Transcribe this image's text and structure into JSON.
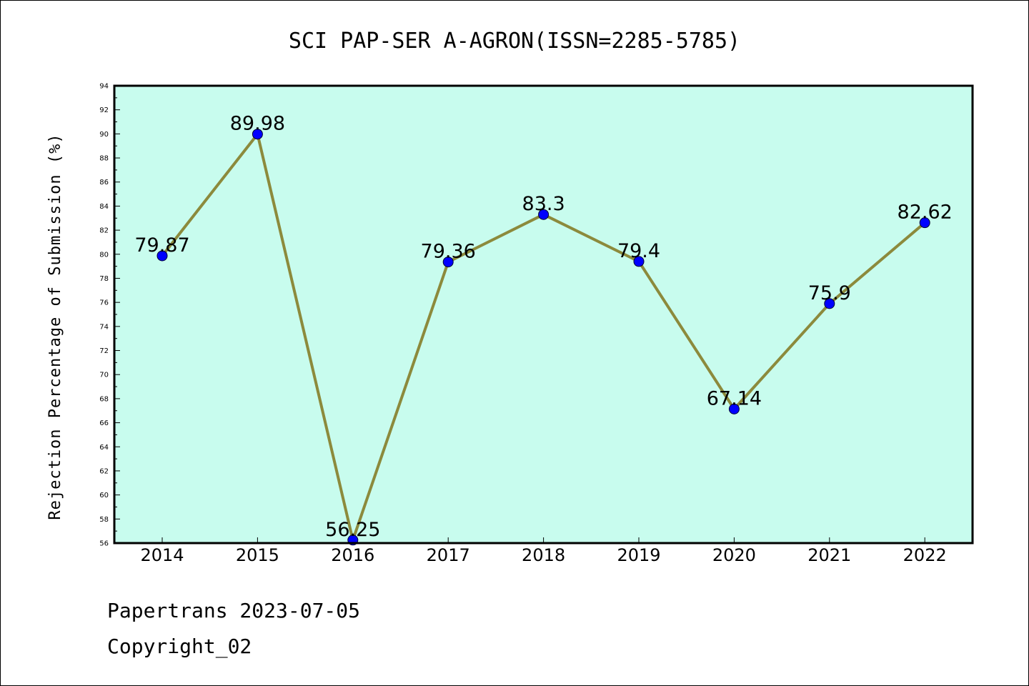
{
  "chart_data": {
    "type": "line",
    "title": "SCI PAP-SER A-AGRON(ISSN=2285-5785)",
    "ylabel": "Rejection Percentage of Submission (%)",
    "xlabel": "",
    "categories": [
      "2014",
      "2015",
      "2016",
      "2017",
      "2018",
      "2019",
      "2020",
      "2021",
      "2022"
    ],
    "series": [
      {
        "values": [
          79.87,
          89.98,
          56.25,
          79.36,
          83.3,
          79.4,
          67.14,
          75.9,
          82.62
        ],
        "labels": [
          "79.87",
          "89.98",
          "56.25",
          "79.36",
          "83.3",
          "79.4",
          "67.14",
          "75.9",
          "82.62"
        ]
      }
    ],
    "ylim": [
      56,
      94
    ],
    "yticks": [
      "56",
      "58",
      "60",
      "62",
      "64",
      "66",
      "68",
      "70",
      "72",
      "74",
      "76",
      "78",
      "80",
      "82",
      "84",
      "86",
      "88",
      "90",
      "92",
      "94"
    ],
    "grid": false,
    "legend": "none",
    "colors": {
      "plot_background": "#c8fcee",
      "line": "#8c8a3c",
      "marker": "#0000ff"
    }
  },
  "footer": {
    "line1": "Papertrans 2023-07-05",
    "line2": "Copyright_02"
  }
}
